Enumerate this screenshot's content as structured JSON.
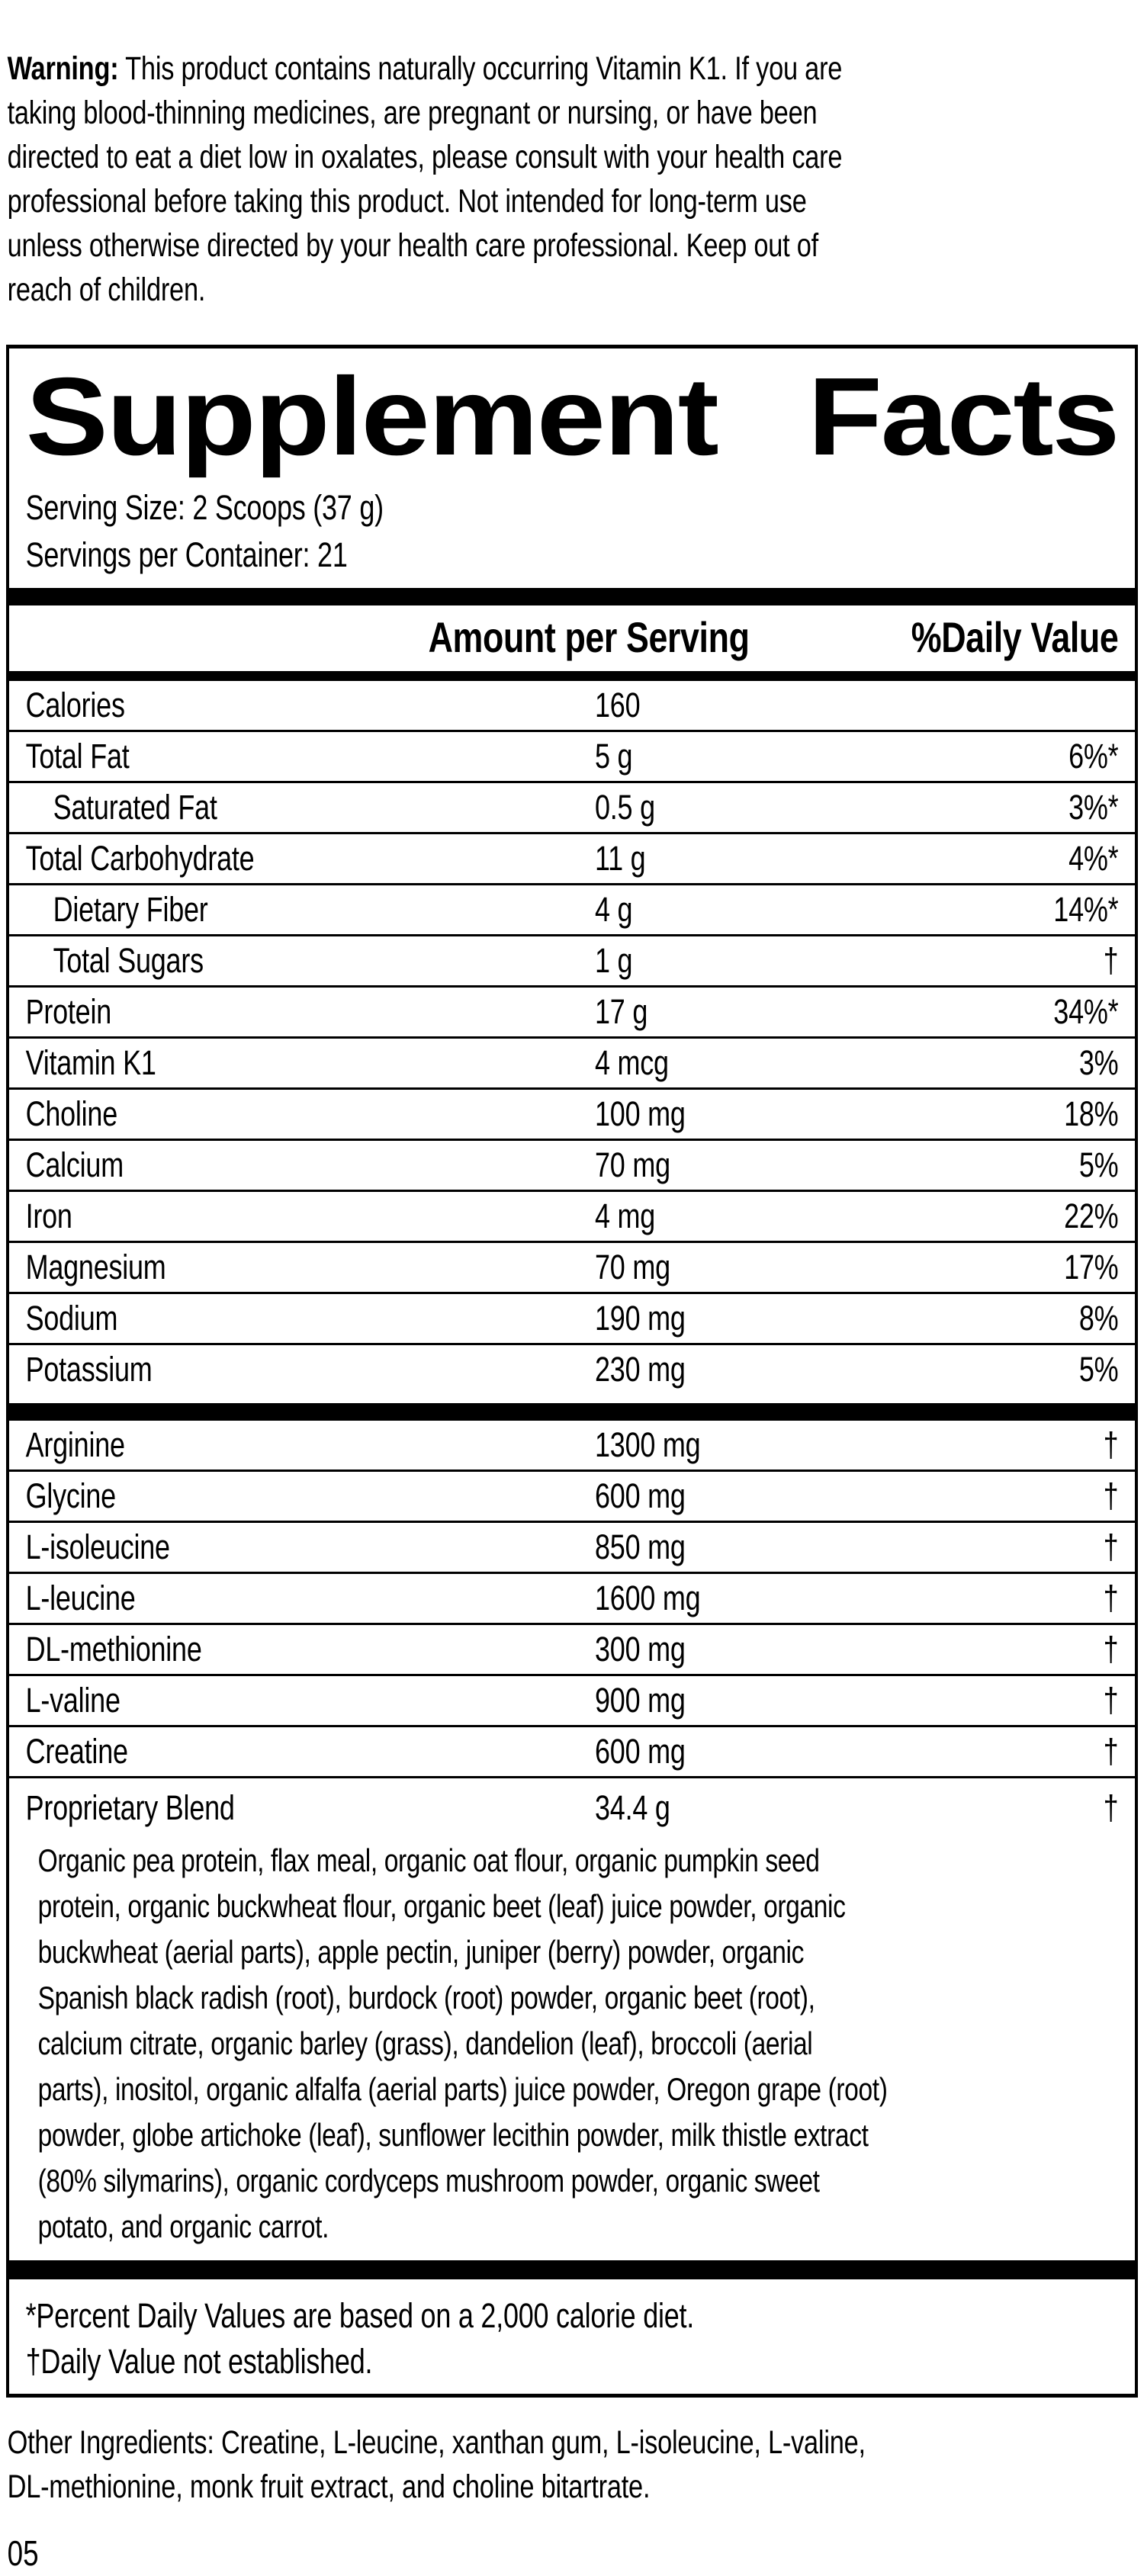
{
  "warning": {
    "label": "Warning:",
    "lines": [
      "This product contains naturally occurring Vitamin K1. If you are",
      "taking blood-thinning medicines, are pregnant or nursing, or have been",
      "directed to eat a diet low in oxalates, please consult with your health care",
      "professional before taking this product. Not intended for long-term use",
      "unless otherwise directed by your health care professional. Keep out of",
      "reach of children."
    ]
  },
  "panel": {
    "title_left": "Supplement",
    "title_right": "Facts",
    "serving_size": "Serving Size: 2 Scoops (37 g)",
    "servings_per_container": "Servings per Container: 21",
    "columns": {
      "amount": "Amount per Serving",
      "dv": "%Daily Value"
    },
    "nutrient_rows": [
      {
        "label": "Calories",
        "amount": "160",
        "dv": ""
      },
      {
        "label": "Total Fat",
        "amount": "5 g",
        "dv": "6%*"
      },
      {
        "label": "Saturated Fat",
        "amount": "0.5 g",
        "dv": "3%*",
        "indent": true
      },
      {
        "label": "Total Carbohydrate",
        "amount": "11 g",
        "dv": "4%*"
      },
      {
        "label": "Dietary Fiber",
        "amount": "4 g",
        "dv": "14%*",
        "indent": true
      },
      {
        "label": "Total Sugars",
        "amount": "1 g",
        "dv": "†",
        "indent": true
      },
      {
        "label": "Protein",
        "amount": "17 g",
        "dv": "34%*"
      },
      {
        "label": "Vitamin K1",
        "amount": "4 mcg",
        "dv": "3%"
      },
      {
        "label": "Choline",
        "amount": "100 mg",
        "dv": "18%"
      },
      {
        "label": "Calcium",
        "amount": "70 mg",
        "dv": "5%"
      },
      {
        "label": "Iron",
        "amount": "4 mg",
        "dv": "22%"
      },
      {
        "label": "Magnesium",
        "amount": "70 mg",
        "dv": "17%"
      },
      {
        "label": "Sodium",
        "amount": "190 mg",
        "dv": "8%"
      },
      {
        "label": "Potassium",
        "amount": "230 mg",
        "dv": "5%"
      }
    ],
    "amino_rows": [
      {
        "label": "Arginine",
        "amount": "1300 mg",
        "dv": "†"
      },
      {
        "label": "Glycine",
        "amount": "600 mg",
        "dv": "†"
      },
      {
        "label": "L-isoleucine",
        "amount": "850 mg",
        "dv": "†"
      },
      {
        "label": "L-leucine",
        "amount": "1600 mg",
        "dv": "†"
      },
      {
        "label": "DL-methionine",
        "amount": "300 mg",
        "dv": "†"
      },
      {
        "label": "L-valine",
        "amount": "900 mg",
        "dv": "†"
      },
      {
        "label": "Creatine",
        "amount": "600 mg",
        "dv": "†"
      }
    ],
    "blend": {
      "label": "Proprietary Blend",
      "amount": "34.4 g",
      "dv": "†",
      "description_lines": [
        "Organic pea protein, flax meal, organic oat flour, organic pumpkin seed",
        "protein, organic buckwheat flour, organic beet (leaf) juice powder, organic",
        "buckwheat (aerial parts), apple pectin, juniper (berry) powder, organic",
        "Spanish black radish (root), burdock (root) powder, organic beet (root),",
        "calcium citrate, organic barley (grass), dandelion (leaf), broccoli (aerial",
        "parts), inositol, organic alfalfa (aerial parts) juice powder, Oregon grape (root)",
        "powder, globe artichoke (leaf), sunflower lecithin powder, milk thistle extract",
        "(80% silymarins), organic cordyceps mushroom powder, organic sweet",
        "potato, and organic carrot."
      ]
    },
    "footnotes": [
      "*Percent Daily Values are based on a 2,000 calorie diet.",
      "†Daily Value not established."
    ]
  },
  "other_ingredients_lines": [
    "Other Ingredients: Creatine, L-leucine, xanthan gum, L-isoleucine, L-valine,",
    "DL-methionine, monk fruit extract, and choline bitartrate."
  ],
  "page_number": "05"
}
